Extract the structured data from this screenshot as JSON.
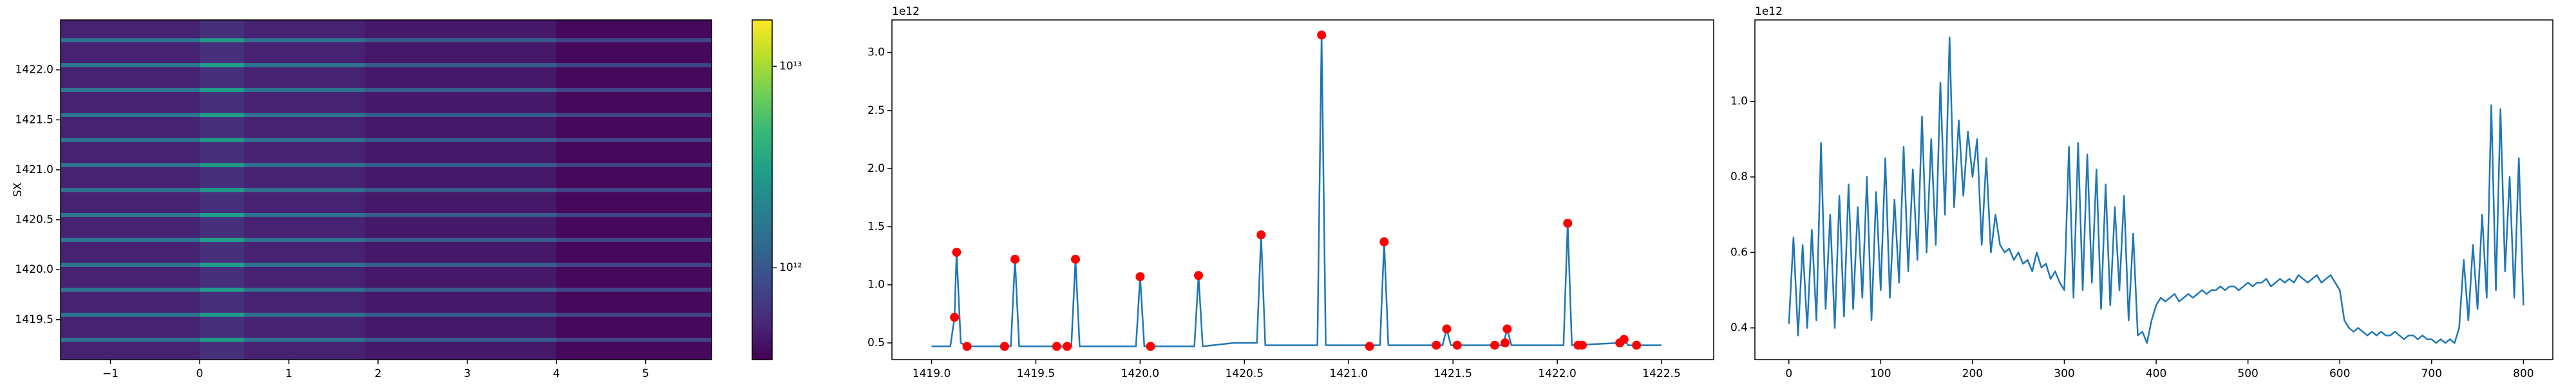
{
  "chart_data": [
    {
      "type": "heatmap",
      "ylabel": "SX",
      "xlim": [
        -1.56,
        5.74
      ],
      "ylim": [
        1419.1,
        1422.5
      ],
      "xticks": [
        {
          "value": -1,
          "label": "−1"
        },
        0,
        1,
        2,
        3,
        4,
        5
      ],
      "yticks": [
        1419.5,
        {
          "value": 1420,
          "label": "1420.0"
        },
        1420.5,
        {
          "value": 1421,
          "label": "1421.0"
        },
        1421.5,
        {
          "value": 1422,
          "label": "1422.0"
        }
      ],
      "x_edges": [
        -1.56,
        0,
        0.5,
        1.85,
        4.0,
        5.74
      ],
      "y_edges": [
        1419.1,
        1419.28,
        1419.32,
        1419.53,
        1419.57,
        1419.78,
        1419.82,
        1420.03,
        1420.07,
        1420.28,
        1420.32,
        1420.53,
        1420.57,
        1420.78,
        1420.82,
        1421.03,
        1421.07,
        1421.28,
        1421.32,
        1421.53,
        1421.57,
        1421.78,
        1421.82,
        1422.03,
        1422.07,
        1422.28,
        1422.32,
        1422.5
      ],
      "z": [
        [
          500000000000.0,
          600000000000.0,
          500000000000.0,
          450000000000.0,
          380000000000.0
        ],
        [
          1600000000000.0,
          3000000000000.0,
          1500000000000.0,
          1100000000000.0,
          800000000000.0
        ],
        [
          500000000000.0,
          600000000000.0,
          500000000000.0,
          450000000000.0,
          380000000000.0
        ],
        [
          1600000000000.0,
          3000000000000.0,
          1500000000000.0,
          1100000000000.0,
          800000000000.0
        ],
        [
          500000000000.0,
          600000000000.0,
          500000000000.0,
          450000000000.0,
          380000000000.0
        ],
        [
          1600000000000.0,
          3000000000000.0,
          1500000000000.0,
          1100000000000.0,
          800000000000.0
        ],
        [
          500000000000.0,
          600000000000.0,
          500000000000.0,
          450000000000.0,
          380000000000.0
        ],
        [
          1600000000000.0,
          3000000000000.0,
          1500000000000.0,
          1100000000000.0,
          800000000000.0
        ],
        [
          500000000000.0,
          600000000000.0,
          500000000000.0,
          450000000000.0,
          380000000000.0
        ],
        [
          1600000000000.0,
          3000000000000.0,
          1500000000000.0,
          1100000000000.0,
          800000000000.0
        ],
        [
          500000000000.0,
          600000000000.0,
          500000000000.0,
          450000000000.0,
          380000000000.0
        ],
        [
          1600000000000.0,
          3000000000000.0,
          1500000000000.0,
          1100000000000.0,
          800000000000.0
        ],
        [
          500000000000.0,
          600000000000.0,
          500000000000.0,
          450000000000.0,
          380000000000.0
        ],
        [
          1600000000000.0,
          3000000000000.0,
          1500000000000.0,
          1100000000000.0,
          800000000000.0
        ],
        [
          500000000000.0,
          600000000000.0,
          500000000000.0,
          450000000000.0,
          380000000000.0
        ],
        [
          1600000000000.0,
          3000000000000.0,
          1500000000000.0,
          1100000000000.0,
          800000000000.0
        ],
        [
          500000000000.0,
          600000000000.0,
          500000000000.0,
          450000000000.0,
          380000000000.0
        ],
        [
          1600000000000.0,
          3000000000000.0,
          1500000000000.0,
          1100000000000.0,
          800000000000.0
        ],
        [
          500000000000.0,
          600000000000.0,
          500000000000.0,
          450000000000.0,
          380000000000.0
        ],
        [
          1600000000000.0,
          3000000000000.0,
          1500000000000.0,
          1100000000000.0,
          800000000000.0
        ],
        [
          500000000000.0,
          600000000000.0,
          500000000000.0,
          450000000000.0,
          380000000000.0
        ],
        [
          1600000000000.0,
          3000000000000.0,
          1500000000000.0,
          1100000000000.0,
          800000000000.0
        ],
        [
          500000000000.0,
          600000000000.0,
          500000000000.0,
          450000000000.0,
          380000000000.0
        ],
        [
          1600000000000.0,
          3000000000000.0,
          1500000000000.0,
          1100000000000.0,
          800000000000.0
        ],
        [
          500000000000.0,
          600000000000.0,
          500000000000.0,
          450000000000.0,
          380000000000.0
        ],
        [
          1600000000000.0,
          3000000000000.0,
          1500000000000.0,
          1100000000000.0,
          800000000000.0
        ],
        [
          500000000000.0,
          600000000000.0,
          500000000000.0,
          450000000000.0,
          380000000000.0
        ]
      ],
      "colorbar": {
        "cmap": "viridis",
        "scale": "log",
        "lim": [
          350000000000.0,
          17000000000000.0
        ],
        "ticks": [
          {
            "value": 1000000000000.0,
            "label": "10¹²"
          },
          {
            "value": 10000000000000.0,
            "label": "10¹³"
          }
        ]
      }
    },
    {
      "type": "line",
      "offset_label": "1e12",
      "xlim": [
        1418.81,
        1422.75
      ],
      "ylim": [
        0.356,
        3.28
      ],
      "xticks": [
        {
          "value": 1419,
          "label": "1419.0"
        },
        1419.5,
        {
          "value": 1420,
          "label": "1420.0"
        },
        1420.5,
        {
          "value": 1421,
          "label": "1421.0"
        },
        1421.5,
        {
          "value": 1422,
          "label": "1422.0"
        },
        1422.5
      ],
      "yticks": [
        0.5,
        {
          "value": 1,
          "label": "1.0"
        },
        1.5,
        {
          "value": 2,
          "label": "2.0"
        },
        2.5,
        {
          "value": 3,
          "label": "3.0"
        }
      ],
      "series": [
        {
          "color": "#1f77b4",
          "x": [
            1419.0,
            1419.09,
            1419.11,
            1419.12,
            1419.14,
            1419.17,
            1419.38,
            1419.4,
            1419.42,
            1419.67,
            1419.69,
            1419.71,
            1419.98,
            1420.0,
            1420.02,
            1420.26,
            1420.28,
            1420.3,
            1420.45,
            1420.56,
            1420.58,
            1420.6,
            1420.85,
            1420.87,
            1420.89,
            1421.15,
            1421.17,
            1421.19,
            1421.45,
            1421.47,
            1421.49,
            1421.74,
            1421.76,
            1421.78,
            1422.03,
            1422.05,
            1422.07,
            1422.3,
            1422.32,
            1422.34,
            1422.5
          ],
          "values": [
            0.47,
            0.47,
            0.72,
            1.28,
            0.5,
            0.47,
            0.47,
            1.22,
            0.47,
            0.47,
            1.22,
            0.47,
            0.47,
            1.07,
            0.47,
            0.47,
            1.08,
            0.47,
            0.5,
            0.5,
            1.43,
            0.48,
            0.48,
            3.15,
            0.48,
            0.48,
            1.37,
            0.48,
            0.48,
            0.62,
            0.48,
            0.48,
            0.62,
            0.48,
            0.48,
            1.53,
            0.48,
            0.5,
            0.53,
            0.48,
            0.48
          ]
        },
        {
          "color": "#ff0000",
          "mode": "markers",
          "x": [
            1419.11,
            1419.12,
            1419.17,
            1419.35,
            1419.4,
            1419.6,
            1419.65,
            1419.69,
            1420.0,
            1420.05,
            1420.28,
            1420.58,
            1420.87,
            1421.1,
            1421.17,
            1421.42,
            1421.47,
            1421.52,
            1421.7,
            1421.75,
            1421.76,
            1422.05,
            1422.1,
            1422.12,
            1422.3,
            1422.32,
            1422.38
          ],
          "values": [
            0.72,
            1.28,
            0.47,
            0.47,
            1.22,
            0.47,
            0.47,
            1.22,
            1.07,
            0.47,
            1.08,
            1.43,
            3.15,
            0.47,
            1.37,
            0.48,
            0.62,
            0.48,
            0.48,
            0.5,
            0.62,
            1.53,
            0.48,
            0.48,
            0.5,
            0.53,
            0.48
          ]
        }
      ]
    },
    {
      "type": "line",
      "offset_label": "1e12",
      "xlim": [
        -37,
        832
      ],
      "ylim": [
        0.316,
        1.216
      ],
      "xticks": [
        0,
        100,
        200,
        300,
        400,
        500,
        600,
        700,
        800
      ],
      "yticks": [
        0.4,
        0.6,
        0.8,
        {
          "value": 1,
          "label": "1.0"
        }
      ],
      "series": [
        {
          "color": "#1f77b4",
          "x": [
            0,
            5,
            10,
            15,
            20,
            25,
            30,
            35,
            40,
            45,
            50,
            55,
            60,
            65,
            70,
            75,
            80,
            85,
            90,
            95,
            100,
            105,
            110,
            115,
            120,
            125,
            130,
            135,
            140,
            145,
            150,
            155,
            160,
            165,
            170,
            175,
            180,
            185,
            190,
            195,
            200,
            205,
            210,
            215,
            220,
            225,
            230,
            235,
            240,
            245,
            250,
            255,
            260,
            265,
            270,
            275,
            280,
            285,
            290,
            295,
            300,
            305,
            310,
            315,
            320,
            325,
            330,
            335,
            340,
            345,
            350,
            355,
            360,
            365,
            370,
            375,
            380,
            385,
            390,
            395,
            400,
            405,
            410,
            415,
            420,
            425,
            430,
            435,
            440,
            445,
            450,
            455,
            460,
            465,
            470,
            475,
            480,
            485,
            490,
            495,
            500,
            505,
            510,
            515,
            520,
            525,
            530,
            535,
            540,
            545,
            550,
            555,
            560,
            565,
            570,
            575,
            580,
            585,
            590,
            595,
            600,
            605,
            610,
            615,
            620,
            625,
            630,
            635,
            640,
            645,
            650,
            655,
            660,
            665,
            670,
            675,
            680,
            685,
            690,
            695,
            700,
            705,
            710,
            715,
            720,
            725,
            730,
            735,
            740,
            745,
            750,
            755,
            760,
            765,
            770,
            775,
            780,
            785,
            790,
            795,
            800
          ],
          "values": [
            0.41,
            0.64,
            0.38,
            0.62,
            0.4,
            0.66,
            0.42,
            0.89,
            0.45,
            0.7,
            0.4,
            0.75,
            0.43,
            0.78,
            0.45,
            0.72,
            0.48,
            0.8,
            0.42,
            0.76,
            0.5,
            0.85,
            0.48,
            0.74,
            0.52,
            0.88,
            0.55,
            0.82,
            0.58,
            0.96,
            0.6,
            0.9,
            0.62,
            1.05,
            0.7,
            1.17,
            0.72,
            0.95,
            0.75,
            0.92,
            0.8,
            0.9,
            0.62,
            0.85,
            0.6,
            0.7,
            0.62,
            0.6,
            0.61,
            0.58,
            0.6,
            0.57,
            0.58,
            0.55,
            0.6,
            0.56,
            0.57,
            0.53,
            0.55,
            0.52,
            0.5,
            0.88,
            0.48,
            0.89,
            0.5,
            0.86,
            0.52,
            0.82,
            0.45,
            0.78,
            0.46,
            0.72,
            0.5,
            0.75,
            0.42,
            0.65,
            0.38,
            0.39,
            0.36,
            0.42,
            0.46,
            0.48,
            0.47,
            0.48,
            0.49,
            0.47,
            0.48,
            0.49,
            0.48,
            0.49,
            0.5,
            0.49,
            0.5,
            0.5,
            0.51,
            0.5,
            0.51,
            0.51,
            0.5,
            0.51,
            0.52,
            0.51,
            0.52,
            0.52,
            0.53,
            0.51,
            0.52,
            0.53,
            0.52,
            0.53,
            0.52,
            0.54,
            0.53,
            0.52,
            0.53,
            0.54,
            0.52,
            0.53,
            0.54,
            0.52,
            0.5,
            0.42,
            0.4,
            0.39,
            0.4,
            0.39,
            0.38,
            0.39,
            0.38,
            0.39,
            0.38,
            0.38,
            0.39,
            0.38,
            0.37,
            0.38,
            0.38,
            0.37,
            0.38,
            0.37,
            0.37,
            0.36,
            0.37,
            0.36,
            0.37,
            0.36,
            0.4,
            0.58,
            0.42,
            0.62,
            0.45,
            0.7,
            0.48,
            0.99,
            0.5,
            0.98,
            0.55,
            0.8,
            0.48,
            0.85,
            0.46
          ]
        }
      ]
    }
  ]
}
